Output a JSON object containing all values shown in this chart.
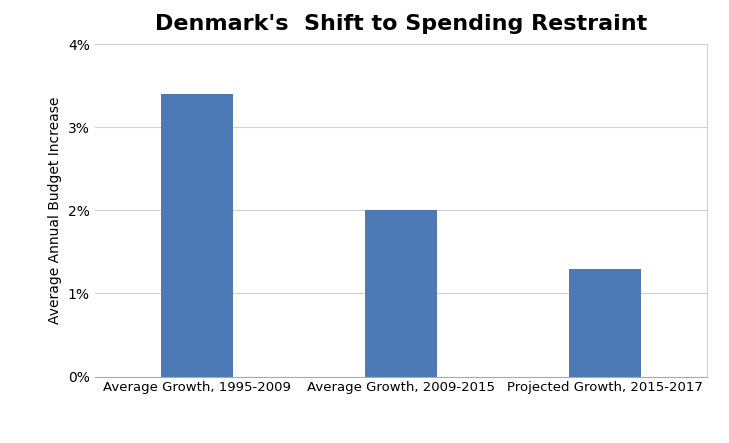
{
  "title": "Denmark's  Shift to Spending Restraint",
  "categories": [
    "Average Growth, 1995-2009",
    "Average Growth, 2009-2015",
    "Projected Growth, 2015-2017"
  ],
  "values": [
    0.034,
    0.02,
    0.013
  ],
  "bar_color": "#4d7ab5",
  "ylabel": "Average Annual Budget Increase",
  "ylim": [
    0,
    0.04
  ],
  "yticks": [
    0.0,
    0.01,
    0.02,
    0.03,
    0.04
  ],
  "ytick_labels": [
    "0%",
    "1%",
    "2%",
    "3%",
    "4%"
  ],
  "title_fontsize": 16,
  "ylabel_fontsize": 10,
  "tick_fontsize": 10,
  "xtick_fontsize": 9.5,
  "background_color": "#ffffff",
  "bar_width": 0.35,
  "grid_color": "#d0d0d0",
  "right_border_color": "#d0d0d0"
}
